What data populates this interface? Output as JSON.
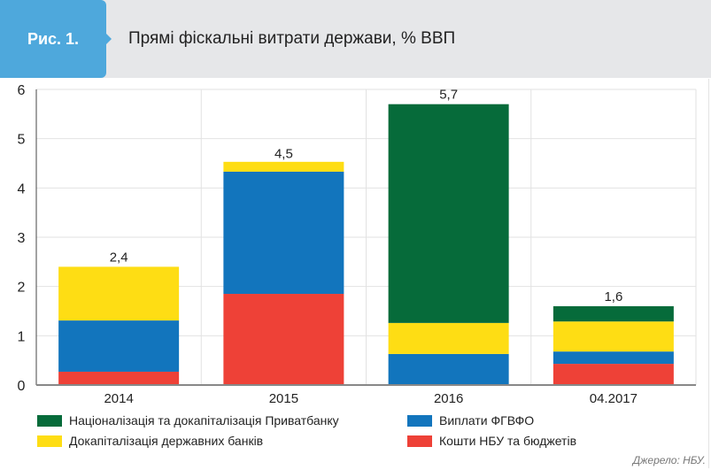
{
  "header": {
    "figure_label": "Рис. 1.",
    "title": "Прямі фіскальні витрати держави, % ВВП"
  },
  "source": "Джерело: НБУ.",
  "colors": {
    "header_bg": "#e6e7e9",
    "figure_tab": "#4ea8dc",
    "green": "#066b3a",
    "blue": "#1275bd",
    "yellow": "#fedd14",
    "red": "#ee4137"
  },
  "chart_data": {
    "type": "bar",
    "stacked": true,
    "title": "Прямі фіскальні витрати держави, % ВВП",
    "xlabel": "",
    "ylabel": "",
    "ylim": [
      0,
      6
    ],
    "yticks": [
      "0",
      "1",
      "2",
      "3",
      "4",
      "5",
      "6"
    ],
    "grid": true,
    "legend_position": "bottom",
    "categories": [
      "2014",
      "2015",
      "2016",
      "04.2017"
    ],
    "totals_labels": [
      "2,4",
      "4,5",
      "5,7",
      "1,6"
    ],
    "totals": [
      2.4,
      4.5,
      5.7,
      1.6
    ],
    "series": [
      {
        "name": "Кошти НБУ та бюджетів",
        "color": "#ee4137",
        "values": [
          0.27,
          1.85,
          0,
          0.43
        ]
      },
      {
        "name": "Виплати ФГВФО",
        "color": "#1275bd",
        "values": [
          1.04,
          2.48,
          0.63,
          0.25
        ]
      },
      {
        "name": "Докапіталізація державних банків",
        "color": "#fedd14",
        "values": [
          1.09,
          0.2,
          0.63,
          0.61
        ]
      },
      {
        "name": "Націоналізація та докапіталізація Приватбанку",
        "color": "#066b3a",
        "values": [
          0,
          0,
          4.44,
          0.31
        ]
      }
    ],
    "legend": [
      {
        "label": "Націоналізація та докапіталізація Приватбанку",
        "color": "#066b3a"
      },
      {
        "label": "Виплати ФГВФО",
        "color": "#1275bd"
      },
      {
        "label": "Докапіталізація державних банків",
        "color": "#fedd14"
      },
      {
        "label": "Кошти НБУ та бюджетів",
        "color": "#ee4137"
      }
    ]
  }
}
